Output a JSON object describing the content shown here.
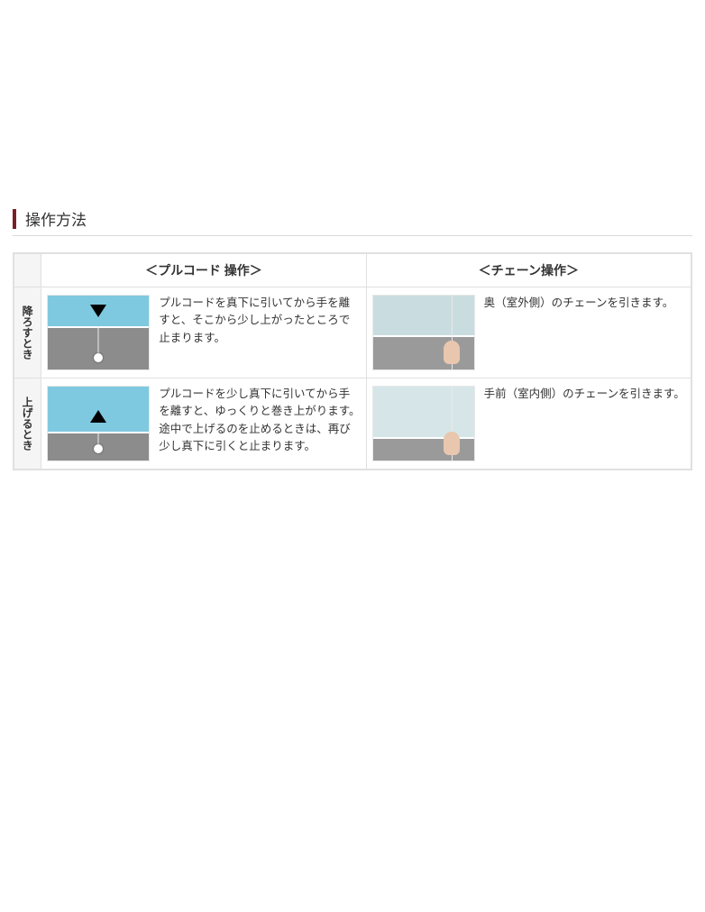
{
  "section_title": "操作方法",
  "accent_color": "#7a1f2a",
  "border_color": "#e0e0e0",
  "row_label_bg": "#f5f5f5",
  "text_color": "#333333",
  "table": {
    "headers": {
      "pull": "＜プルコード 操作＞",
      "chain": "＜チェーン操作＞"
    },
    "rows": [
      {
        "label": "降ろすとき",
        "pull_desc": "プルコードを真下に引いてから手を離すと、そこから少し上がったところで止まります。",
        "chain_desc": "奥（室外側）のチェーンを引きます。",
        "arrow_dir": "down",
        "thumb_style": {
          "pull_top_color": "#7fc9e0",
          "pull_bot_color": "#8c8c8c",
          "chain_top_color": "#c9dde0",
          "chain_bot_color": "#9a9a9a"
        }
      },
      {
        "label": "上げるとき",
        "pull_desc": "プルコードを少し真下に引いてから手を離すと、ゆっくりと巻き上がります。\n途中で上げるのを止めるときは、再び少し真下に引くと止まります。",
        "chain_desc": "手前（室内側）のチェーンを引きます。",
        "arrow_dir": "up",
        "thumb_style": {
          "pull_top_color": "#7fc9e0",
          "pull_bot_color": "#8c8c8c",
          "chain_top_color": "#d6e6e8",
          "chain_bot_color": "#9a9a9a"
        }
      }
    ]
  }
}
